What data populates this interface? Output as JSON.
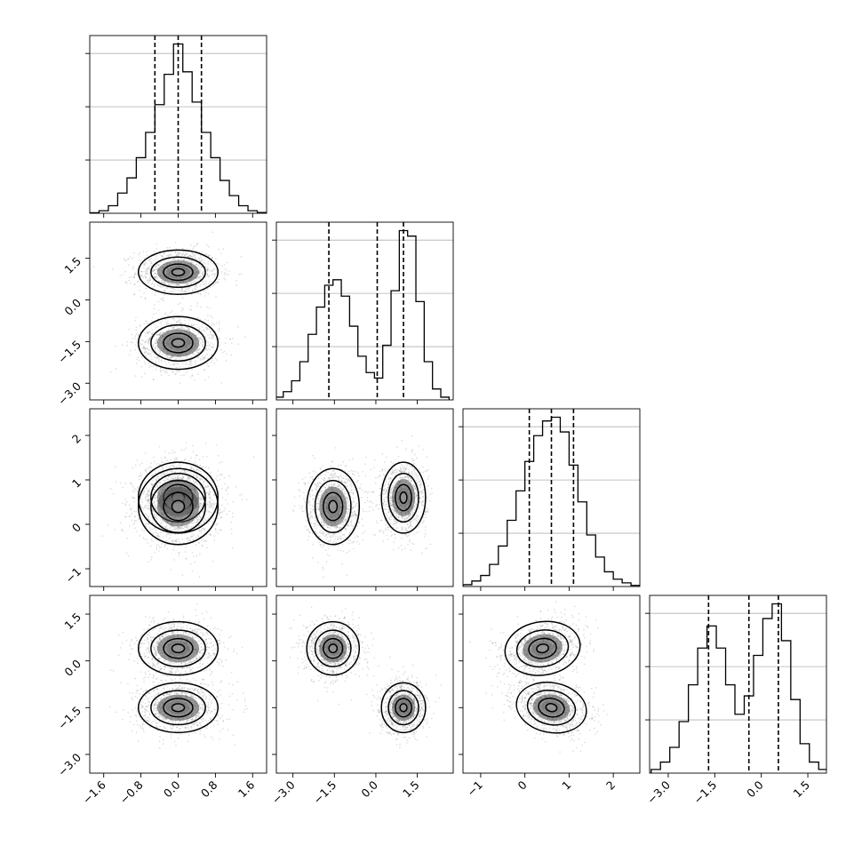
{
  "chart_data": {
    "type": "corner",
    "title": "",
    "variables": [
      {
        "label": "",
        "range": [
          -1.9,
          1.9
        ],
        "ticks": [
          -1.6,
          -0.8,
          0.0,
          0.8,
          1.6
        ],
        "tick_labels": [
          "−1.6",
          "−0.8",
          "0.0",
          "0.8",
          "1.6"
        ]
      },
      {
        "label": "",
        "range": [
          -3.6,
          2.8
        ],
        "ticks": [
          -3.0,
          -1.5,
          0.0,
          1.5
        ],
        "tick_labels": [
          "−3.0",
          "−1.5",
          "0.0",
          "1.5"
        ]
      },
      {
        "label": "",
        "range": [
          -1.4,
          2.6
        ],
        "ticks": [
          -1,
          0,
          1,
          2
        ],
        "tick_labels": [
          "−1",
          "0",
          "1",
          "2"
        ]
      },
      {
        "label": "",
        "range": [
          -3.6,
          2.1
        ],
        "ticks": [
          -3.0,
          -1.5,
          0.0,
          1.5
        ],
        "tick_labels": [
          "−3.0",
          "−1.5",
          "0.0",
          "1.5"
        ]
      }
    ],
    "quantiles": [
      [
        -0.5,
        0.0,
        0.5
      ],
      [
        -1.7,
        0.05,
        1.0
      ],
      [
        0.1,
        0.6,
        1.1
      ],
      [
        -1.7,
        -0.4,
        0.55
      ]
    ],
    "histograms": [
      {
        "bin_centers": [
          -1.8,
          -1.6,
          -1.4,
          -1.2,
          -1.0,
          -0.8,
          -0.6,
          -0.4,
          -0.2,
          0.0,
          0.2,
          0.4,
          0.6,
          0.8,
          1.0,
          1.2,
          1.4,
          1.6,
          1.8
        ],
        "counts": [
          0.2,
          1,
          3,
          8,
          14,
          22,
          32,
          43,
          55,
          67,
          56,
          44,
          32,
          22,
          13,
          7,
          3,
          1,
          0.3
        ]
      },
      {
        "bin_centers": [
          -3.5,
          -3.2,
          -2.9,
          -2.6,
          -2.3,
          -2.0,
          -1.7,
          -1.4,
          -1.1,
          -0.8,
          -0.5,
          -0.2,
          0.1,
          0.4,
          0.7,
          1.0,
          1.3,
          1.6,
          1.9,
          2.2,
          2.5
        ],
        "counts": [
          1,
          3,
          7,
          14,
          24,
          34,
          42,
          44,
          38,
          27,
          16,
          10,
          8,
          20,
          40,
          62,
          60,
          36,
          14,
          4,
          1
        ]
      },
      {
        "bin_centers": [
          -1.3,
          -1.1,
          -0.9,
          -0.7,
          -0.5,
          -0.3,
          -0.1,
          0.1,
          0.3,
          0.5,
          0.7,
          0.9,
          1.1,
          1.3,
          1.5,
          1.7,
          1.9,
          2.1,
          2.3,
          2.5
        ],
        "counts": [
          0.5,
          1.5,
          3,
          6,
          11,
          18,
          26,
          34,
          41,
          45,
          46,
          42,
          33,
          23,
          14,
          8,
          4,
          2,
          1,
          0.3
        ]
      },
      {
        "bin_centers": [
          -3.4,
          -3.1,
          -2.8,
          -2.5,
          -2.2,
          -1.9,
          -1.6,
          -1.3,
          -1.0,
          -0.7,
          -0.4,
          -0.1,
          0.2,
          0.5,
          0.8,
          1.1,
          1.4,
          1.7,
          2.0
        ],
        "counts": [
          1,
          3,
          7,
          14,
          24,
          34,
          40,
          34,
          24,
          16,
          21,
          32,
          42,
          46,
          36,
          20,
          8,
          3,
          1
        ]
      }
    ],
    "components": [
      {
        "mean": [
          0.0,
          1.0,
          0.6,
          -1.5
        ],
        "sd": [
          0.45,
          0.42,
          0.42,
          0.42
        ],
        "rho": {
          "2-3": -0.3
        }
      },
      {
        "mean": [
          0.0,
          -1.55,
          0.4,
          0.4
        ],
        "sd": [
          0.45,
          0.5,
          0.45,
          0.45
        ],
        "rho": {
          "2-3": 0.25
        }
      }
    ],
    "grid": true,
    "legend": "none"
  }
}
